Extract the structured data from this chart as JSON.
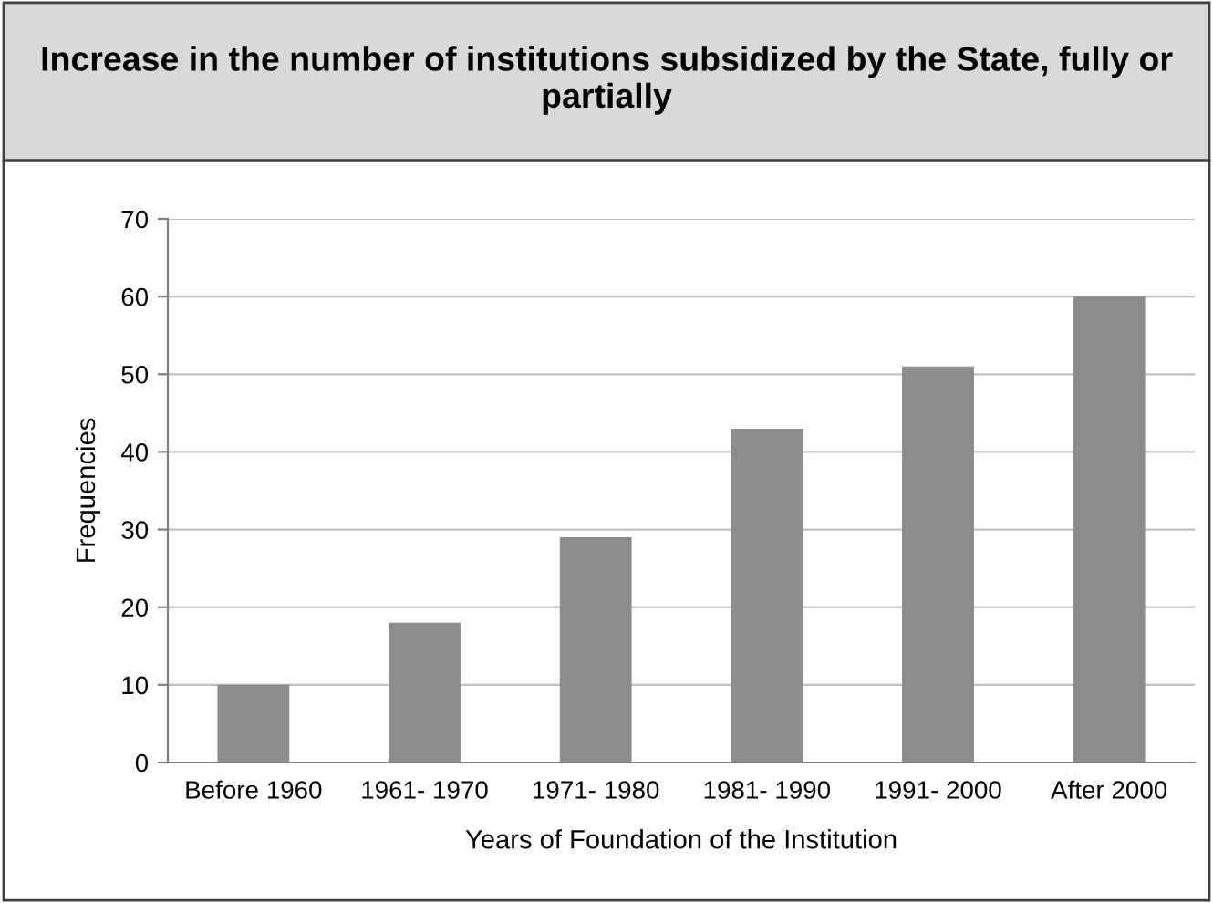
{
  "chart_data": {
    "type": "bar",
    "title": "Increase in the number of institutions subsidized by the State, fully or partially",
    "xlabel": "Years of Foundation of the Institution",
    "ylabel": "Frequencies",
    "categories": [
      "Before 1960",
      "1961- 1970",
      "1971- 1980",
      "1981- 1990",
      "1991- 2000",
      "After 2000"
    ],
    "values": [
      10,
      18,
      29,
      43,
      51,
      60
    ],
    "color": "#8c8c8c",
    "ylim": [
      0,
      70
    ],
    "yticks": [
      0,
      10,
      20,
      30,
      40,
      50,
      60,
      70
    ],
    "grid": "y",
    "legend": false
  }
}
